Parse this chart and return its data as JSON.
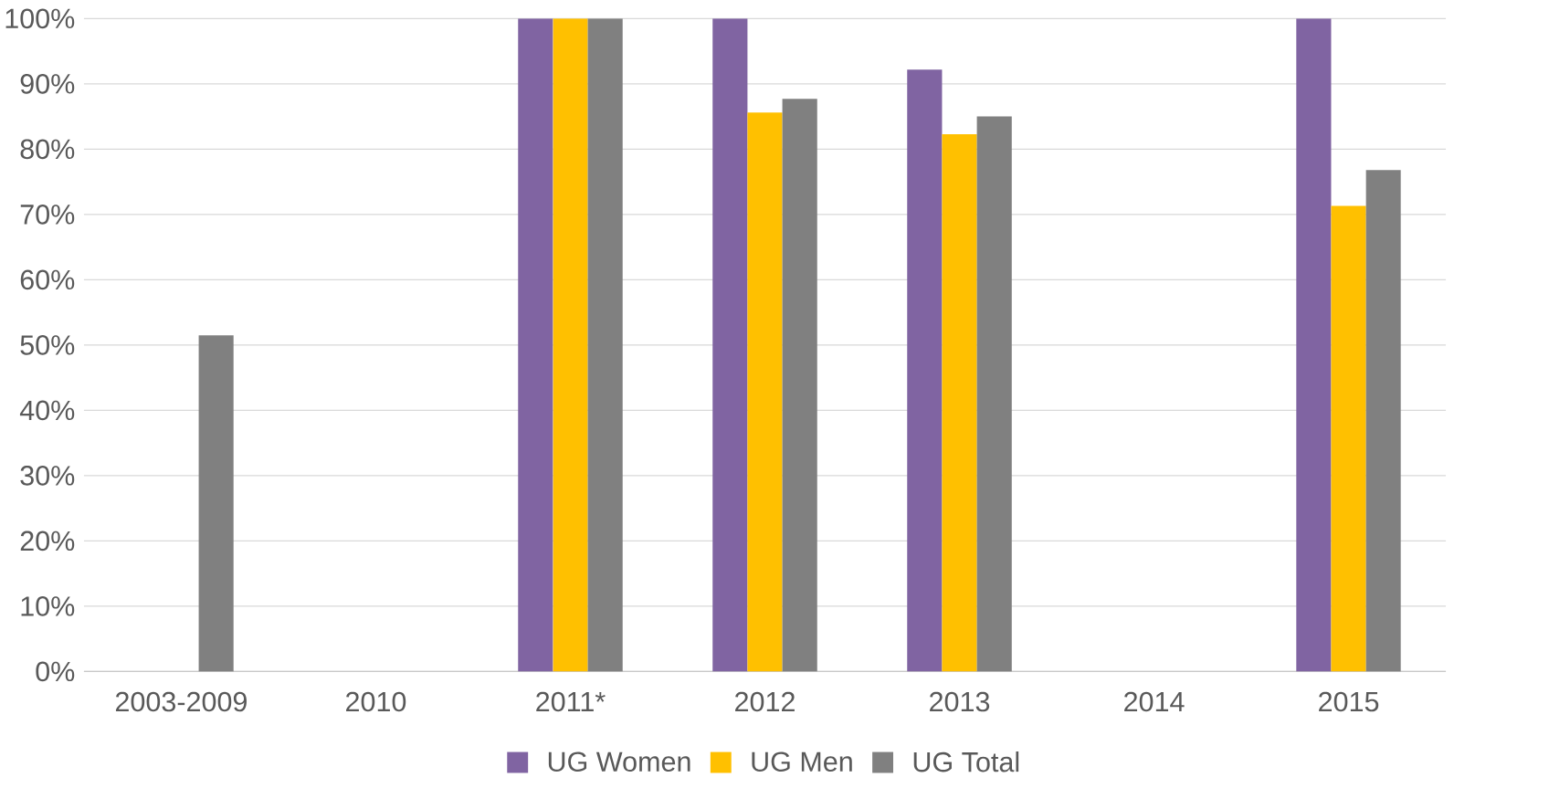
{
  "chart_data": {
    "type": "bar",
    "categories": [
      "2003-2009",
      "2010",
      "2011*",
      "2012",
      "2013",
      "2014",
      "2015"
    ],
    "series": [
      {
        "name": "UG Women",
        "color": "#8064a2",
        "values": [
          null,
          null,
          100,
          100,
          92.2,
          null,
          100
        ]
      },
      {
        "name": "UG Men",
        "color": "#ffc000",
        "values": [
          null,
          null,
          100,
          85.6,
          82.3,
          null,
          71.3
        ]
      },
      {
        "name": "UG Total",
        "color": "#808080",
        "values": [
          51.5,
          null,
          100,
          87.7,
          85.0,
          null,
          76.8
        ]
      }
    ],
    "ylim": [
      0,
      100
    ],
    "yticks": [
      {
        "value": 0,
        "label": "0%"
      },
      {
        "value": 10,
        "label": "10%"
      },
      {
        "value": 20,
        "label": "20%"
      },
      {
        "value": 30,
        "label": "30%"
      },
      {
        "value": 40,
        "label": "40%"
      },
      {
        "value": 50,
        "label": "50%"
      },
      {
        "value": 60,
        "label": "60%"
      },
      {
        "value": 70,
        "label": "70%"
      },
      {
        "value": 80,
        "label": "80%"
      },
      {
        "value": 90,
        "label": "90%"
      },
      {
        "value": 100,
        "label": "100%"
      }
    ],
    "grid": "y",
    "legend": "bottom"
  }
}
